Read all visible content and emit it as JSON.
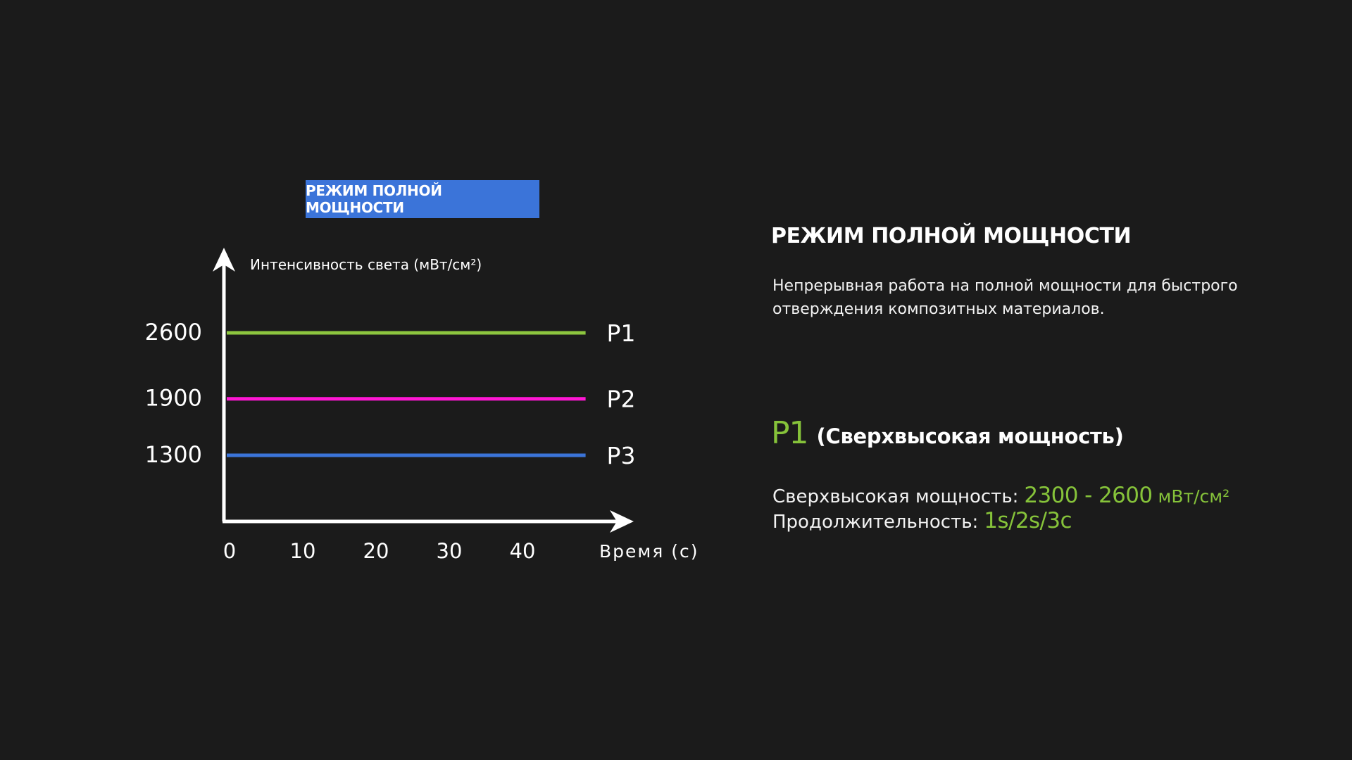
{
  "badge": {
    "label": "РЕЖИМ ПОЛНОЙ МОЩНОСТИ"
  },
  "chart_data": {
    "type": "line",
    "ylabel": "Интенсивность света (мВт/см²)",
    "xlabel": "Время (с)",
    "x_ticks": [
      "0",
      "10",
      "20",
      "30",
      "40"
    ],
    "y_ticks": [
      "2600",
      "1900",
      "1300"
    ],
    "xlim": [
      0,
      50
    ],
    "ylim": [
      600,
      3000
    ],
    "grid": false,
    "series": [
      {
        "name": "P1",
        "color": "#8dc63f",
        "x": [
          0,
          49
        ],
        "y": [
          2600,
          2600
        ]
      },
      {
        "name": "P2",
        "color": "#ff17d4",
        "x": [
          0,
          49
        ],
        "y": [
          1900,
          1900
        ]
      },
      {
        "name": "P3",
        "color": "#3b74d9",
        "x": [
          0,
          49
        ],
        "y": [
          1300,
          1300
        ]
      }
    ]
  },
  "info": {
    "title": "РЕЖИМ ПОЛНОЙ МОЩНОСТИ",
    "description": "Непрерывная работа на полной мощности для быстрого отверждения композитных материалов.",
    "mode_code": "P1",
    "mode_name": "(Сверхвысокая мощность)",
    "power_label": "Сверхвысокая мощность:",
    "power_value": "2300 - 2600",
    "power_unit": "мВт/см²",
    "duration_label": "Продолжительность:",
    "duration_value": "1s/2s/3c"
  },
  "colors": {
    "background": "#1b1b1b",
    "accent_green": "#86c33a",
    "accent_blue": "#3b74d9",
    "accent_magenta": "#ff17d4"
  }
}
